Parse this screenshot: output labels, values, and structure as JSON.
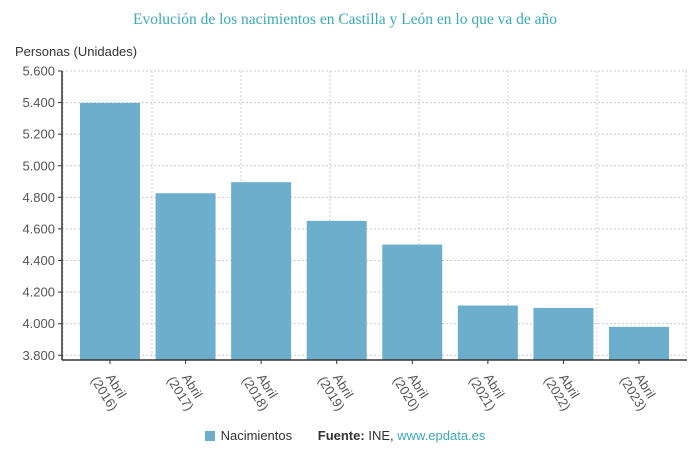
{
  "chart_data": {
    "type": "bar",
    "title": "Evolución de los nacimientos en Castilla y León en lo que va de año",
    "ylabel": "Personas (Unidades)",
    "xlabel": "",
    "categories": [
      [
        "Abril",
        "(2016)"
      ],
      [
        "Abril",
        "(2017)"
      ],
      [
        "Abril",
        "(2018)"
      ],
      [
        "Abril",
        "(2019)"
      ],
      [
        "Abril",
        "(2020)"
      ],
      [
        "Abril",
        "(2021)"
      ],
      [
        "Abril",
        "(2022)"
      ],
      [
        "Abril",
        "(2023)"
      ]
    ],
    "series": [
      {
        "name": "Nacimientos",
        "values": [
          5398,
          4826,
          4896,
          4651,
          4501,
          4115,
          4100,
          3980
        ],
        "color": "#6eaecd"
      }
    ],
    "ylim": [
      3770,
      5600
    ],
    "yticks": [
      "3.800",
      "4.000",
      "4.200",
      "4.400",
      "4.600",
      "4.800",
      "5.000",
      "5.200",
      "5.400",
      "5.600"
    ],
    "ytick_values": [
      3800,
      4000,
      4200,
      4400,
      4600,
      4800,
      5000,
      5200,
      5400,
      5600
    ],
    "grid": true,
    "legend": "bottom"
  },
  "legend": {
    "series_label": "Nacimientos",
    "source_label": "Fuente:",
    "source_name": "INE, ",
    "source_link": "www.epdata.es"
  },
  "colors": {
    "title": "#3aaab8",
    "bar": "#6eaecd",
    "link": "#3aaab8"
  }
}
